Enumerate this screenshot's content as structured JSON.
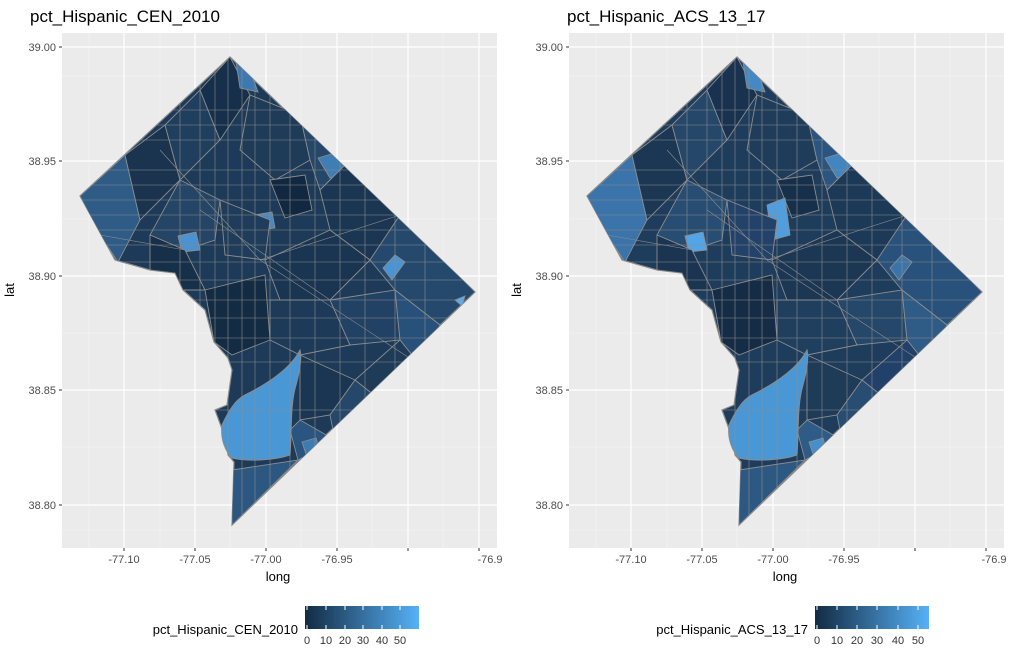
{
  "panels": [
    {
      "title": "pct_Hispanic_CEN_2010",
      "xlabel": "long",
      "ylabel": "lat",
      "x_ticks": [
        "-77.10",
        "-77.05",
        "-77.00",
        "-76.95",
        "-76.9"
      ],
      "y_ticks": [
        "38.80",
        "38.85",
        "38.90",
        "38.95",
        "39.00"
      ],
      "legend": {
        "title": "pct_Hispanic_CEN_2010",
        "ticks": [
          "0",
          "10",
          "20",
          "30",
          "40",
          "50"
        ]
      }
    },
    {
      "title": "pct_Hispanic_ACS_13_17",
      "xlabel": "long",
      "ylabel": "lat",
      "x_ticks": [
        "-77.10",
        "-77.05",
        "-77.00",
        "-76.95",
        "-76.9"
      ],
      "y_ticks": [
        "38.80",
        "38.85",
        "38.90",
        "38.95",
        "39.00"
      ],
      "legend": {
        "title": "pct_Hispanic_ACS_13_17",
        "ticks": [
          "0",
          "10",
          "20",
          "30",
          "40",
          "50"
        ]
      }
    }
  ],
  "colors": {
    "panel_background": "#ebebeb",
    "grid_major": "#ffffff",
    "tract_border": "#8c8c8c",
    "scale_low": "#132b43",
    "scale_high": "#56b1f7",
    "river_fill": "#4a97d6"
  }
}
